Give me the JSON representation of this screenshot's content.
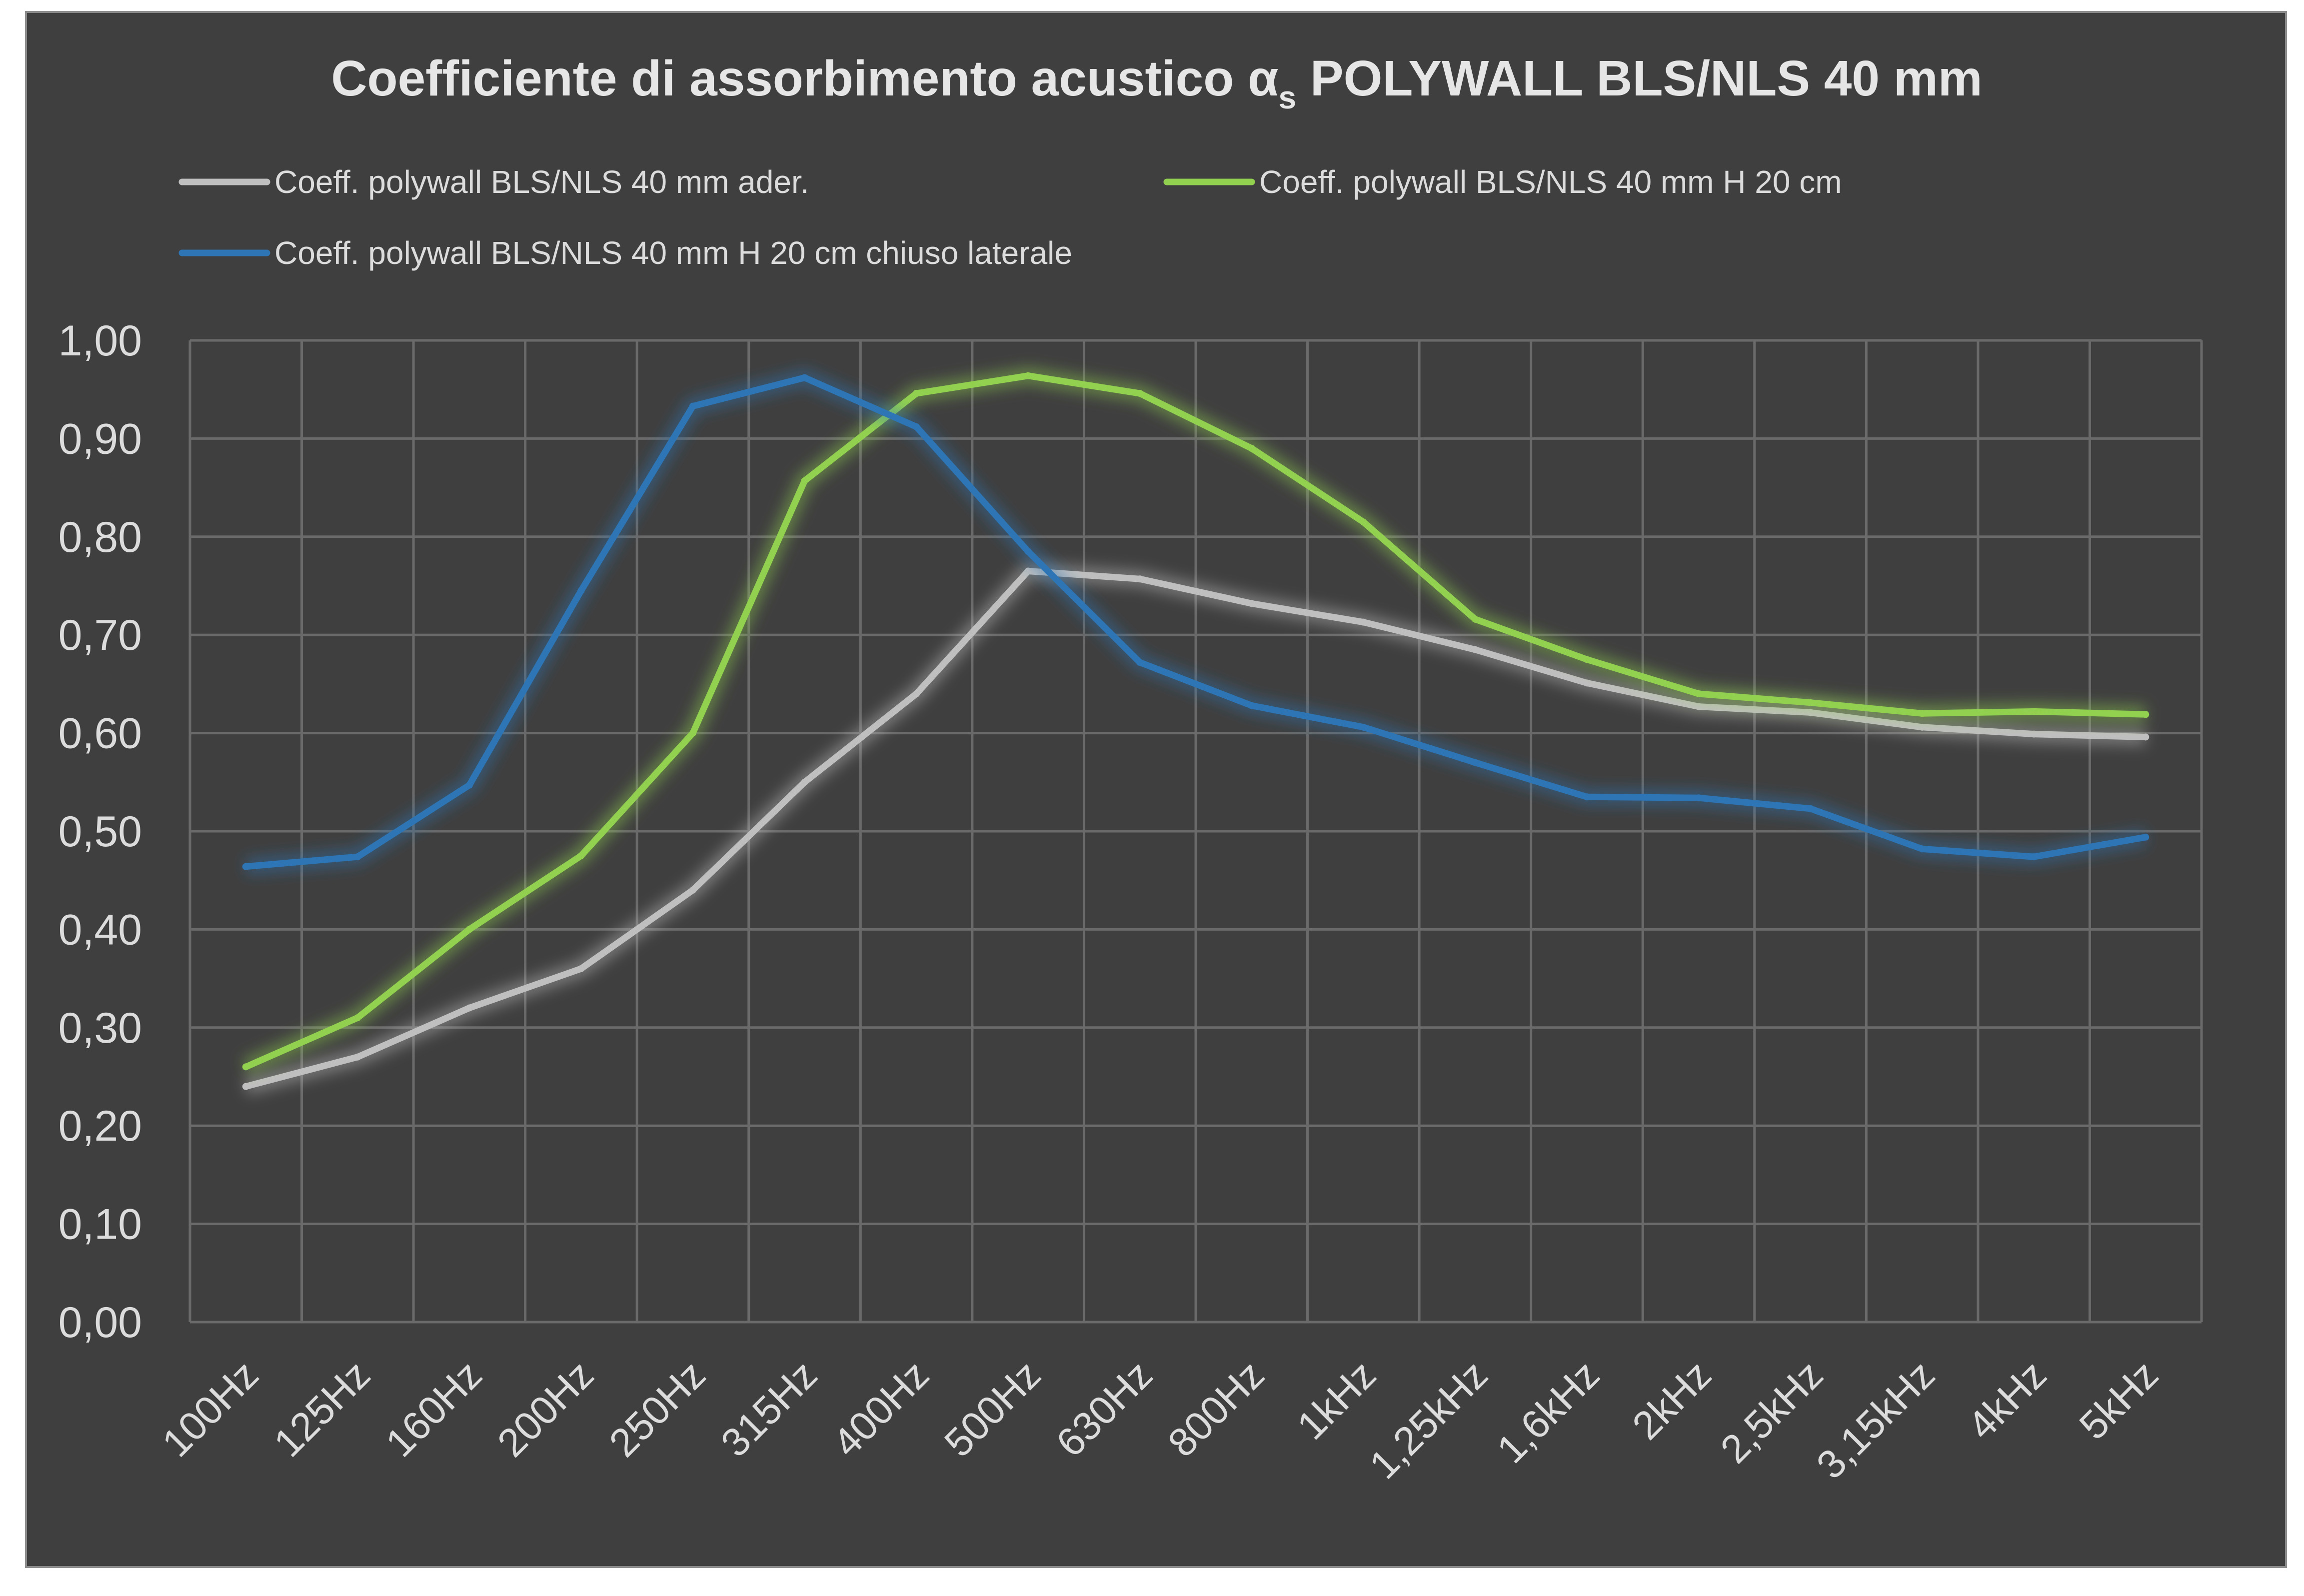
{
  "chart_data": {
    "type": "line",
    "title": "Coefficiente di assorbimento acustico α",
    "title_subscript": "s",
    "title_suffix": " POLYWALL BLS/NLS 40 mm",
    "ylim": [
      0,
      1
    ],
    "yticks": [
      "0,00",
      "0,10",
      "0,20",
      "0,30",
      "0,40",
      "0,50",
      "0,60",
      "0,70",
      "0,80",
      "0,90",
      "1,00"
    ],
    "grid": true,
    "legend_position": "top",
    "categories": [
      "100Hz",
      "125Hz",
      "160Hz",
      "200Hz",
      "250Hz",
      "315Hz",
      "400Hz",
      "500Hz",
      "630Hz",
      "800Hz",
      "1kHz",
      "1,25kHz",
      "1,6kHz",
      "2kHz",
      "2,5kHz",
      "3,15kHz",
      "4kHz",
      "5kHz"
    ],
    "series": [
      {
        "name": "Coeff. polywall BLS/NLS 40 mm ader.",
        "color": "#bfbfbf",
        "values": [
          0.24,
          0.27,
          0.32,
          0.36,
          0.44,
          0.55,
          0.64,
          0.765,
          0.757,
          0.732,
          0.713,
          0.685,
          0.651,
          0.627,
          0.621,
          0.606,
          0.599,
          0.596
        ]
      },
      {
        "name": "Coeff. polywall BLS/NLS 40 mm H 20 cm",
        "color": "#92d050",
        "values": [
          0.26,
          0.31,
          0.4,
          0.475,
          0.6,
          0.857,
          0.946,
          0.964,
          0.946,
          0.89,
          0.815,
          0.716,
          0.675,
          0.64,
          0.631,
          0.62,
          0.622,
          0.619
        ]
      },
      {
        "name": "Coeff. polywall BLS/NLS 40 mm H 20 cm chiuso laterale",
        "color": "#2e75b6",
        "values": [
          0.464,
          0.474,
          0.547,
          0.745,
          0.933,
          0.962,
          0.912,
          0.785,
          0.672,
          0.628,
          0.606,
          0.57,
          0.535,
          0.534,
          0.523,
          0.482,
          0.474,
          0.494
        ]
      }
    ]
  }
}
